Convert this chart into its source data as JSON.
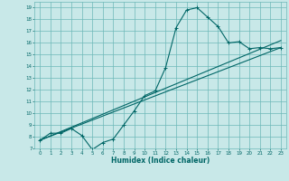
{
  "xlabel": "Humidex (Indice chaleur)",
  "bg_color": "#c8e8e8",
  "grid_color": "#6db8b8",
  "line_color": "#006666",
  "xlim": [
    -0.5,
    23.5
  ],
  "ylim": [
    7,
    19.5
  ],
  "xticks": [
    0,
    1,
    2,
    3,
    4,
    5,
    6,
    7,
    8,
    9,
    10,
    11,
    12,
    13,
    14,
    15,
    16,
    17,
    18,
    19,
    20,
    21,
    22,
    23
  ],
  "yticks": [
    7,
    8,
    9,
    10,
    11,
    12,
    13,
    14,
    15,
    16,
    17,
    18,
    19
  ],
  "series": [
    {
      "x": [
        0,
        1,
        2,
        3,
        4,
        5,
        6,
        7,
        8,
        9,
        10,
        11,
        12,
        13,
        14,
        15,
        16,
        17,
        18,
        19,
        20,
        21,
        22,
        23
      ],
      "y": [
        7.7,
        8.3,
        8.3,
        8.7,
        8.1,
        6.9,
        7.5,
        7.8,
        9.0,
        10.2,
        11.5,
        11.9,
        13.9,
        17.3,
        18.8,
        19.0,
        18.2,
        17.4,
        16.0,
        16.1,
        15.5,
        15.6,
        15.5,
        15.6
      ]
    },
    {
      "x": [
        0,
        23
      ],
      "y": [
        7.7,
        15.6
      ]
    },
    {
      "x": [
        0,
        23
      ],
      "y": [
        7.7,
        16.2
      ]
    }
  ]
}
